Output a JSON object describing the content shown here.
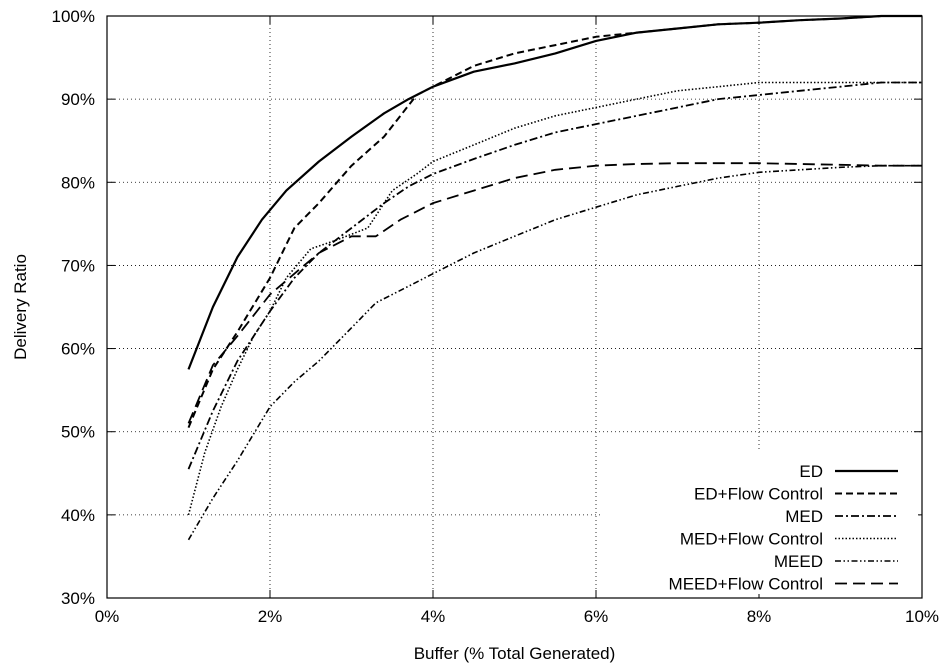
{
  "chart_data": {
    "type": "line",
    "title": "",
    "xlabel": "Buffer (% Total Generated)",
    "ylabel": "Delivery Ratio",
    "xlim": [
      0,
      10
    ],
    "ylim": [
      30,
      100
    ],
    "x_ticks": [
      0,
      2,
      4,
      6,
      8,
      10
    ],
    "y_ticks": [
      30,
      40,
      50,
      60,
      70,
      80,
      90,
      100
    ],
    "x_tick_labels": [
      "0%",
      "2%",
      "4%",
      "6%",
      "8%",
      "10%"
    ],
    "y_tick_labels": [
      "30%",
      "40%",
      "50%",
      "60%",
      "70%",
      "80%",
      "90%",
      "100%"
    ],
    "grid": true,
    "legend_position": "bottom-right",
    "series": [
      {
        "name": "ED",
        "style": "solid",
        "x": [
          1.0,
          1.3,
          1.6,
          1.9,
          2.2,
          2.6,
          3.0,
          3.4,
          3.7,
          4.0,
          4.5,
          5.0,
          5.5,
          6.0,
          6.5,
          7.0,
          7.5,
          8.0,
          8.5,
          9.0,
          9.5,
          10.0
        ],
        "y": [
          57.5,
          65.0,
          71.0,
          75.5,
          79.0,
          82.5,
          85.5,
          88.3,
          90.0,
          91.5,
          93.3,
          94.3,
          95.5,
          97.0,
          98.0,
          98.5,
          99.0,
          99.2,
          99.5,
          99.7,
          100.0,
          100.0
        ]
      },
      {
        "name": "ED+Flow Control",
        "style": "dashed",
        "x": [
          1.0,
          1.3,
          1.6,
          2.0,
          2.3,
          2.6,
          3.0,
          3.4,
          3.6,
          3.8,
          4.0,
          4.5,
          5.0,
          5.5,
          6.0,
          6.5,
          7.0,
          7.5,
          8.0,
          8.5,
          9.0,
          9.5,
          10.0
        ],
        "y": [
          50.5,
          57.5,
          62.0,
          68.5,
          74.5,
          77.5,
          82.0,
          85.5,
          88.0,
          90.5,
          91.5,
          94.0,
          95.5,
          96.5,
          97.5,
          98.0,
          98.5,
          99.0,
          99.2,
          99.5,
          99.7,
          100.0,
          100.0
        ]
      },
      {
        "name": "MED",
        "style": "dash-dot",
        "x": [
          1.0,
          1.3,
          1.6,
          2.0,
          2.3,
          2.6,
          3.0,
          3.4,
          3.7,
          4.0,
          4.5,
          5.0,
          5.5,
          6.0,
          6.5,
          7.0,
          7.5,
          8.0,
          8.5,
          9.0,
          9.5,
          10.0
        ],
        "y": [
          45.5,
          52.5,
          58.5,
          64.5,
          68.5,
          71.5,
          74.5,
          77.5,
          79.5,
          81.0,
          82.8,
          84.5,
          86.0,
          87.0,
          88.0,
          89.0,
          90.0,
          90.5,
          91.0,
          91.5,
          92.0,
          92.0
        ]
      },
      {
        "name": "MED+Flow Control",
        "style": "dotted",
        "x": [
          1.0,
          1.2,
          1.4,
          1.6,
          1.8,
          2.0,
          2.2,
          2.5,
          2.8,
          3.2,
          3.5,
          3.8,
          4.0,
          4.5,
          5.0,
          5.5,
          6.0,
          6.5,
          7.0,
          7.5,
          8.0,
          8.5,
          9.0,
          9.5,
          10.0
        ],
        "y": [
          40.0,
          47.5,
          53.0,
          57.5,
          61.5,
          64.5,
          68.5,
          72.0,
          73.0,
          74.5,
          79.0,
          81.0,
          82.5,
          84.5,
          86.5,
          88.0,
          89.0,
          90.0,
          91.0,
          91.5,
          92.0,
          92.0,
          92.0,
          92.0,
          92.0
        ]
      },
      {
        "name": "MEED",
        "style": "dash-dot-dot",
        "x": [
          1.0,
          1.3,
          1.6,
          2.0,
          2.3,
          2.6,
          3.0,
          3.3,
          3.7,
          4.0,
          4.5,
          5.0,
          5.5,
          6.0,
          6.5,
          7.0,
          7.5,
          8.0,
          8.5,
          9.0,
          9.5,
          10.0
        ],
        "y": [
          37.0,
          42.0,
          46.5,
          53.0,
          56.0,
          58.5,
          62.5,
          65.5,
          67.5,
          69.0,
          71.5,
          73.5,
          75.5,
          77.0,
          78.5,
          79.5,
          80.5,
          81.2,
          81.5,
          81.8,
          82.0,
          82.0
        ]
      },
      {
        "name": "MEED+Flow Control",
        "style": "long-dash",
        "x": [
          1.0,
          1.3,
          1.6,
          2.0,
          2.3,
          2.6,
          3.0,
          3.3,
          3.6,
          4.0,
          4.5,
          5.0,
          5.5,
          6.0,
          6.5,
          7.0,
          7.5,
          8.0,
          8.5,
          9.0,
          9.5,
          10.0
        ],
        "y": [
          51.0,
          58.0,
          61.5,
          66.5,
          69.0,
          71.5,
          73.5,
          73.5,
          75.5,
          77.5,
          79.0,
          80.5,
          81.5,
          82.0,
          82.2,
          82.3,
          82.3,
          82.3,
          82.2,
          82.1,
          82.0,
          82.0
        ]
      }
    ]
  }
}
